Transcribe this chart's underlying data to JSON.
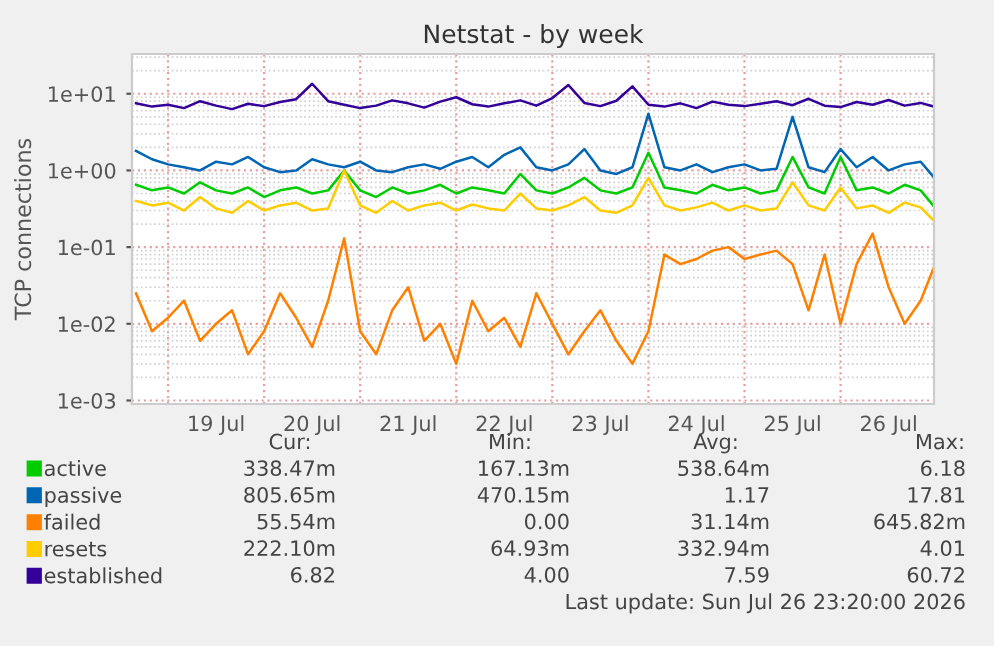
{
  "chart_data": {
    "type": "line",
    "title": "Netstat - by week",
    "ylabel": "TCP connections",
    "x": [
      "2026-07-18T16:00",
      "2026-07-18T20:00",
      "2026-07-19T00:00",
      "2026-07-19T04:00",
      "2026-07-19T08:00",
      "2026-07-19T12:00",
      "2026-07-19T16:00",
      "2026-07-19T20:00",
      "2026-07-20T00:00",
      "2026-07-20T04:00",
      "2026-07-20T08:00",
      "2026-07-20T12:00",
      "2026-07-20T16:00",
      "2026-07-20T20:00",
      "2026-07-21T00:00",
      "2026-07-21T04:00",
      "2026-07-21T08:00",
      "2026-07-21T12:00",
      "2026-07-21T16:00",
      "2026-07-21T20:00",
      "2026-07-22T00:00",
      "2026-07-22T04:00",
      "2026-07-22T08:00",
      "2026-07-22T12:00",
      "2026-07-22T16:00",
      "2026-07-22T20:00",
      "2026-07-23T00:00",
      "2026-07-23T04:00",
      "2026-07-23T08:00",
      "2026-07-23T12:00",
      "2026-07-23T16:00",
      "2026-07-23T20:00",
      "2026-07-24T00:00",
      "2026-07-24T04:00",
      "2026-07-24T08:00",
      "2026-07-24T12:00",
      "2026-07-24T16:00",
      "2026-07-24T20:00",
      "2026-07-25T00:00",
      "2026-07-25T04:00",
      "2026-07-25T08:00",
      "2026-07-25T12:00",
      "2026-07-25T16:00",
      "2026-07-25T20:00",
      "2026-07-26T00:00",
      "2026-07-26T04:00",
      "2026-07-26T08:00",
      "2026-07-26T12:00",
      "2026-07-26T16:00",
      "2026-07-26T20:00",
      "2026-07-26T23:20"
    ],
    "series": [
      {
        "name": "active",
        "color": "#00cc00",
        "values": [
          0.65,
          0.55,
          0.6,
          0.5,
          0.7,
          0.55,
          0.5,
          0.6,
          0.45,
          0.55,
          0.6,
          0.5,
          0.55,
          1.0,
          0.55,
          0.45,
          0.6,
          0.5,
          0.55,
          0.65,
          0.5,
          0.6,
          0.55,
          0.5,
          0.9,
          0.55,
          0.5,
          0.6,
          0.8,
          0.55,
          0.5,
          0.6,
          1.7,
          0.6,
          0.55,
          0.5,
          0.65,
          0.55,
          0.6,
          0.5,
          0.55,
          1.5,
          0.6,
          0.5,
          1.5,
          0.55,
          0.6,
          0.5,
          0.65,
          0.55,
          0.34
        ]
      },
      {
        "name": "passive",
        "color": "#0066b3",
        "values": [
          1.8,
          1.4,
          1.2,
          1.1,
          1.0,
          1.3,
          1.2,
          1.5,
          1.1,
          0.95,
          1.0,
          1.4,
          1.2,
          1.1,
          1.3,
          1.0,
          0.95,
          1.1,
          1.2,
          1.05,
          1.3,
          1.5,
          1.1,
          1.6,
          2.0,
          1.1,
          1.0,
          1.2,
          1.9,
          1.0,
          0.9,
          1.1,
          5.5,
          1.1,
          1.0,
          1.2,
          0.95,
          1.1,
          1.2,
          1.0,
          1.05,
          5.0,
          1.1,
          0.95,
          1.9,
          1.1,
          1.5,
          1.0,
          1.2,
          1.3,
          0.81
        ]
      },
      {
        "name": "failed",
        "color": "#ff8000",
        "values": [
          0.025,
          0.008,
          0.012,
          0.02,
          0.006,
          0.01,
          0.015,
          0.004,
          0.008,
          0.025,
          0.012,
          0.005,
          0.02,
          0.13,
          0.008,
          0.004,
          0.015,
          0.03,
          0.006,
          0.01,
          0.003,
          0.02,
          0.008,
          0.012,
          0.005,
          0.025,
          0.01,
          0.004,
          0.008,
          0.015,
          0.006,
          0.003,
          0.008,
          0.08,
          0.06,
          0.07,
          0.09,
          0.1,
          0.07,
          0.08,
          0.09,
          0.06,
          0.015,
          0.08,
          0.01,
          0.06,
          0.15,
          0.03,
          0.01,
          0.02,
          0.055
        ]
      },
      {
        "name": "resets",
        "color": "#ffcc00",
        "values": [
          0.4,
          0.35,
          0.38,
          0.3,
          0.45,
          0.32,
          0.28,
          0.4,
          0.3,
          0.35,
          0.38,
          0.3,
          0.32,
          1.0,
          0.35,
          0.28,
          0.4,
          0.3,
          0.35,
          0.38,
          0.3,
          0.36,
          0.32,
          0.3,
          0.5,
          0.32,
          0.3,
          0.35,
          0.45,
          0.3,
          0.28,
          0.35,
          0.8,
          0.35,
          0.3,
          0.33,
          0.38,
          0.3,
          0.35,
          0.3,
          0.32,
          0.7,
          0.35,
          0.3,
          0.6,
          0.32,
          0.35,
          0.28,
          0.38,
          0.33,
          0.22
        ]
      },
      {
        "name": "established",
        "color": "#330099",
        "values": [
          7.5,
          6.8,
          7.2,
          6.5,
          8.0,
          7.0,
          6.3,
          7.4,
          6.9,
          7.8,
          8.5,
          13.5,
          8.0,
          7.2,
          6.5,
          7.0,
          8.2,
          7.5,
          6.6,
          7.9,
          9.0,
          7.3,
          6.8,
          7.5,
          8.2,
          7.0,
          8.8,
          13.0,
          7.6,
          6.9,
          8.1,
          12.5,
          7.2,
          6.8,
          7.5,
          6.5,
          7.9,
          7.2,
          6.9,
          7.4,
          8.0,
          7.1,
          8.6,
          7.0,
          6.7,
          7.8,
          7.2,
          8.3,
          7.0,
          7.6,
          6.8
        ]
      }
    ],
    "log": "y",
    "ylim": [
      0.0009,
      33
    ],
    "yticks": [
      {
        "value": 0.001,
        "label": "1e-03"
      },
      {
        "value": 0.01,
        "label": "1e-02"
      },
      {
        "value": 0.1,
        "label": "1e-01"
      },
      {
        "value": 1,
        "label": "1e+00"
      },
      {
        "value": 10,
        "label": "1e+01"
      }
    ],
    "xlim": [
      "2026-07-18T15:00",
      "2026-07-26T23:20"
    ],
    "xticks": [
      {
        "value": "2026-07-19T00:00",
        "label": null
      },
      {
        "value": "2026-07-19T12:00",
        "label": "19 Jul"
      },
      {
        "value": "2026-07-20T00:00",
        "label": null
      },
      {
        "value": "2026-07-20T12:00",
        "label": "20 Jul"
      },
      {
        "value": "2026-07-21T00:00",
        "label": null
      },
      {
        "value": "2026-07-21T12:00",
        "label": "21 Jul"
      },
      {
        "value": "2026-07-22T00:00",
        "label": null
      },
      {
        "value": "2026-07-22T12:00",
        "label": "22 Jul"
      },
      {
        "value": "2026-07-23T00:00",
        "label": null
      },
      {
        "value": "2026-07-23T12:00",
        "label": "23 Jul"
      },
      {
        "value": "2026-07-24T00:00",
        "label": null
      },
      {
        "value": "2026-07-24T12:00",
        "label": "24 Jul"
      },
      {
        "value": "2026-07-25T00:00",
        "label": null
      },
      {
        "value": "2026-07-25T12:00",
        "label": "25 Jul"
      },
      {
        "value": "2026-07-26T00:00",
        "label": null
      },
      {
        "value": "2026-07-26T12:00",
        "label": "26 Jul"
      }
    ],
    "grid": true,
    "legend": "bottom",
    "marker": "none",
    "line_style": "solid",
    "annotations": [
      "Cur:",
      "Min:",
      "Avg:",
      "Max:",
      "338.47m",
      "167.13m",
      "538.64m",
      "6.18",
      "805.65m",
      "470.15m",
      "1.17",
      "17.81",
      "55.54m",
      "0.00",
      "31.14m",
      "645.82m",
      "222.10m",
      "64.93m",
      "332.94m",
      "4.01",
      "6.82",
      "4.00",
      "7.59",
      "60.72",
      "Last update: Sun Jul 26 23:20:00 2026"
    ]
  }
}
